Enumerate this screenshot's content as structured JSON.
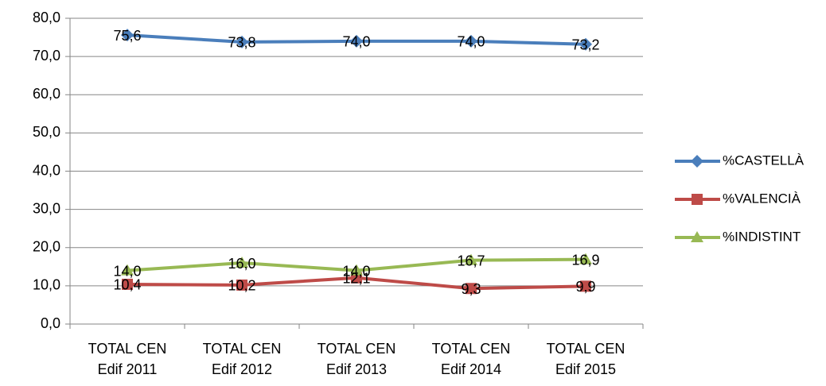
{
  "chart_data": {
    "type": "line",
    "categories": [
      "TOTAL CEN Edif 2011",
      "TOTAL CEN Edif 2012",
      "TOTAL CEN Edif 2013",
      "TOTAL CEN Edif 2014",
      "TOTAL CEN Edif 2015"
    ],
    "series": [
      {
        "name": "%CASTELLÀ",
        "color": "#4a7ebb",
        "marker": "diamond",
        "values": [
          75.6,
          73.8,
          74.0,
          74.0,
          73.2
        ],
        "value_labels": [
          "75,6",
          "73,8",
          "74,0",
          "74,0",
          "73,2"
        ]
      },
      {
        "name": "%VALENCIÀ",
        "color": "#be4b48",
        "marker": "square",
        "values": [
          10.4,
          10.2,
          12.1,
          9.3,
          9.9
        ],
        "value_labels": [
          "10,4",
          "10,2",
          "12,1",
          "9,3",
          "9,9"
        ]
      },
      {
        "name": "%INDISTINT",
        "color": "#98b954",
        "marker": "triangle",
        "values": [
          14.0,
          16.0,
          14.0,
          16.7,
          16.9
        ],
        "value_labels": [
          "14,0",
          "16,0",
          "14,0",
          "16,7",
          "16,9"
        ]
      }
    ],
    "ylim": [
      0,
      80
    ],
    "yticks": [
      {
        "value": 0,
        "label": "0,0"
      },
      {
        "value": 10,
        "label": "10,0"
      },
      {
        "value": 20,
        "label": "20,0"
      },
      {
        "value": 30,
        "label": "30,0"
      },
      {
        "value": 40,
        "label": "40,0"
      },
      {
        "value": 50,
        "label": "50,0"
      },
      {
        "value": 60,
        "label": "60,0"
      },
      {
        "value": 70,
        "label": "70,0"
      },
      {
        "value": 80,
        "label": "80,0"
      }
    ],
    "grid": true,
    "legend": "right"
  }
}
